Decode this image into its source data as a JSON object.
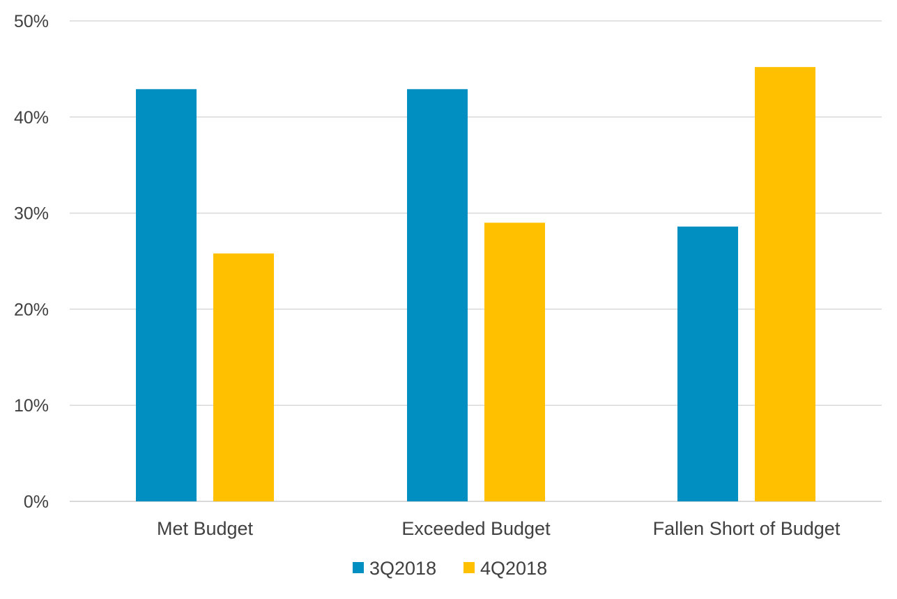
{
  "chart_data": {
    "type": "bar",
    "categories": [
      "Met Budget",
      "Exceeded Budget",
      "Fallen Short of Budget"
    ],
    "series": [
      {
        "name": "3Q2018",
        "color": "#008FC0",
        "values": [
          42.9,
          42.9,
          28.6
        ]
      },
      {
        "name": "4Q2018",
        "color": "#FFC000",
        "values": [
          25.8,
          29.0,
          45.2
        ]
      }
    ],
    "ylim": [
      0,
      50
    ],
    "yticks": [
      0,
      10,
      20,
      30,
      40,
      50
    ],
    "ytick_labels": [
      "0%",
      "10%",
      "20%",
      "30%",
      "40%",
      "50%"
    ],
    "title": "",
    "xlabel": "",
    "ylabel": "",
    "grid": true,
    "gridline_color": "#D9D9D9",
    "legend_position": "bottom-center"
  }
}
